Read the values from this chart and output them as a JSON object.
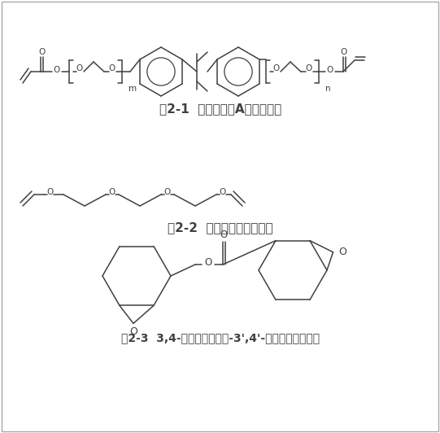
{
  "fig_width": 5.41,
  "fig_height": 5.32,
  "dpi": 100,
  "bg_color": "#ffffff",
  "border_color": "#aaaaaa",
  "line_color": "#404040",
  "caption1": "图2-1  乙氧化双酚A二丙烯酸酯",
  "caption2": "图2-2  三乙二醇二乙烯基醚",
  "caption3": "图2-3  3,4-环氧环己基甲基-3',4'-环氧环己基甲酸酯",
  "caption_fontsize": 11
}
